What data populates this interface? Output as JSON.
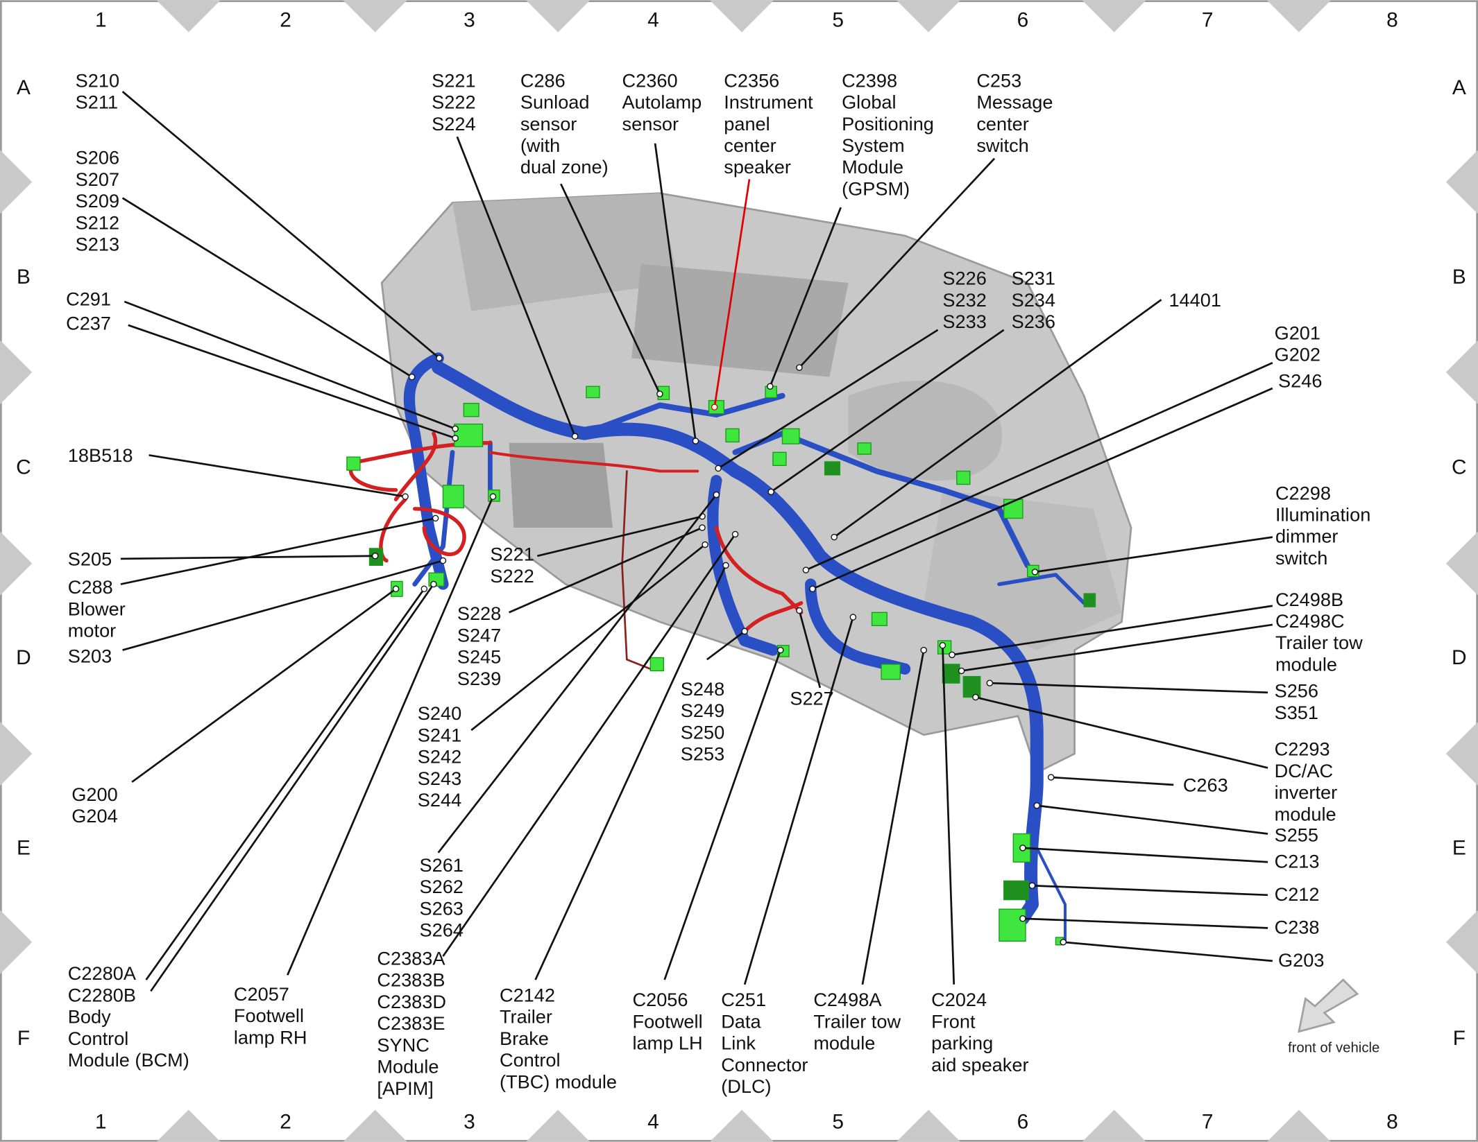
{
  "grid": {
    "columns": [
      "1",
      "2",
      "3",
      "4",
      "5",
      "6",
      "7",
      "8"
    ],
    "rows": [
      "A",
      "B",
      "C",
      "D",
      "E",
      "F"
    ]
  },
  "labels": [
    {
      "lines": [
        "S210",
        "S211"
      ]
    },
    {
      "lines": [
        "S206",
        "S207",
        "S209",
        "S212",
        "S213"
      ]
    },
    {
      "lines": [
        "C291"
      ]
    },
    {
      "lines": [
        "C237"
      ]
    },
    {
      "lines": [
        "18B518"
      ]
    },
    {
      "lines": [
        "S205"
      ]
    },
    {
      "lines": [
        "C288",
        "Blower",
        "motor"
      ]
    },
    {
      "lines": [
        "S203"
      ]
    },
    {
      "lines": [
        "G200",
        "G204"
      ]
    },
    {
      "lines": [
        "C2280A",
        "C2280B",
        "Body",
        "Control",
        "Module (BCM)"
      ]
    },
    {
      "lines": [
        "C2057",
        "Footwell",
        "lamp RH"
      ]
    },
    {
      "lines": [
        "S221",
        "S222",
        "S224"
      ]
    },
    {
      "lines": [
        "C286",
        "Sunload",
        "sensor",
        "(with",
        "dual zone)"
      ]
    },
    {
      "lines": [
        "C2360",
        "Autolamp",
        "sensor"
      ]
    },
    {
      "lines": [
        "C2356",
        "Instrument",
        "panel",
        "center",
        "speaker"
      ],
      "color": "#e00000"
    },
    {
      "lines": [
        "C2398",
        "Global",
        "Positioning",
        "System",
        "Module",
        "(GPSM)"
      ]
    },
    {
      "lines": [
        "C253",
        "Message",
        "center",
        "switch"
      ]
    },
    {
      "lines": [
        "S226",
        "S232",
        "S233"
      ]
    },
    {
      "lines": [
        "S231",
        "S234",
        "S236"
      ]
    },
    {
      "lines": [
        "14401"
      ]
    },
    {
      "lines": [
        "G201",
        "G202"
      ]
    },
    {
      "lines": [
        "S246"
      ]
    },
    {
      "lines": [
        "C2298",
        "Illumination",
        "dimmer",
        "switch"
      ]
    },
    {
      "lines": [
        "C2498B",
        "C2498C",
        "Trailer tow",
        "module"
      ]
    },
    {
      "lines": [
        "S256",
        "S351"
      ]
    },
    {
      "lines": [
        "C2293",
        "DC/AC",
        "inverter",
        "module"
      ]
    },
    {
      "lines": [
        "C263"
      ]
    },
    {
      "lines": [
        "S255"
      ]
    },
    {
      "lines": [
        "C213"
      ]
    },
    {
      "lines": [
        "C212"
      ]
    },
    {
      "lines": [
        "C238"
      ]
    },
    {
      "lines": [
        "G203"
      ]
    },
    {
      "lines": [
        "S221",
        "S222"
      ]
    },
    {
      "lines": [
        "S228",
        "S247",
        "S245",
        "S239"
      ]
    },
    {
      "lines": [
        "S240",
        "S241",
        "S242",
        "S243",
        "S244"
      ]
    },
    {
      "lines": [
        "S261",
        "S262",
        "S263",
        "S264"
      ]
    },
    {
      "lines": [
        "C2383A",
        "C2383B",
        "C2383D",
        "C2383E",
        "SYNC",
        "Module",
        "[APIM]"
      ]
    },
    {
      "lines": [
        "C2142",
        "Trailer",
        "Brake",
        "Control",
        "(TBC) module"
      ]
    },
    {
      "lines": [
        "S248",
        "S249",
        "S250",
        "S253"
      ]
    },
    {
      "lines": [
        "S227"
      ]
    },
    {
      "lines": [
        "C2056",
        "Footwell",
        "lamp LH"
      ]
    },
    {
      "lines": [
        "C251",
        "Data",
        "Link",
        "Connector",
        "(DLC)"
      ]
    },
    {
      "lines": [
        "C2498A",
        "Trailer tow",
        "module"
      ]
    },
    {
      "lines": [
        "C2024",
        "Front",
        "parking",
        "aid speaker"
      ]
    }
  ],
  "front_label": "front of vehicle"
}
